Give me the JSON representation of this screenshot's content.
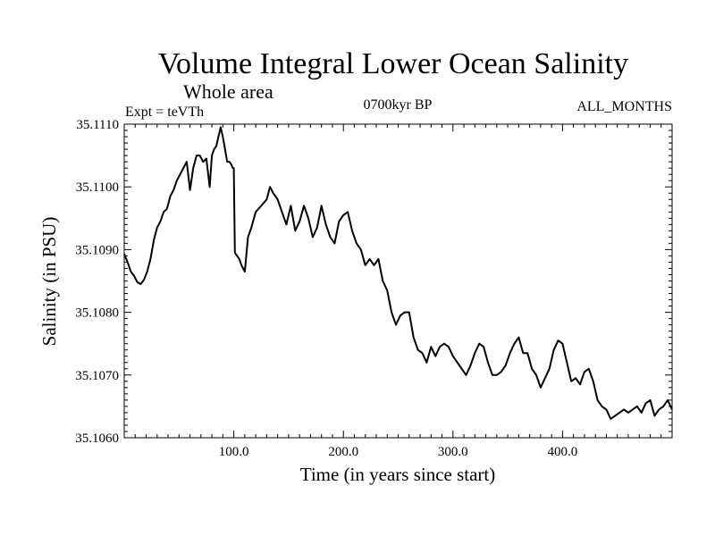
{
  "chart_data": {
    "type": "line",
    "title": "Volume Integral Lower Ocean Salinity",
    "subtitle": "Whole area",
    "experiment": "Expt = teVTh",
    "period": "0700kyr BP",
    "months": "ALL_MONTHS",
    "xlabel": "Time (in years since start)",
    "ylabel": "Salinity (in PSU)",
    "xlim": [
      0,
      500
    ],
    "ylim": [
      35.106,
      35.111
    ],
    "x_ticks": [
      100,
      200,
      300,
      400
    ],
    "x_tick_labels": [
      "100.0",
      "200.0",
      "300.0",
      "400.0"
    ],
    "y_ticks": [
      35.106,
      35.107,
      35.108,
      35.109,
      35.11,
      35.111
    ],
    "y_tick_labels": [
      "35.1060",
      "35.1070",
      "35.1080",
      "35.1090",
      "35.1100",
      "35.1110"
    ],
    "grid": false,
    "series": [
      {
        "x": [
          0,
          3,
          6,
          9,
          12,
          15,
          18,
          21,
          24,
          27,
          30,
          33,
          36,
          39,
          42,
          45,
          48,
          51,
          54,
          57,
          60,
          63,
          66,
          69,
          72,
          75,
          78,
          80,
          82,
          84,
          86,
          88,
          90,
          92,
          94,
          96,
          98,
          99,
          100,
          101,
          103,
          105,
          107,
          110,
          113,
          116,
          120,
          125,
          130,
          133,
          136,
          140,
          144,
          148,
          152,
          156,
          160,
          164,
          168,
          172,
          176,
          180,
          184,
          188,
          192,
          196,
          200,
          204,
          208,
          212,
          216,
          220,
          224,
          228,
          232,
          236,
          240,
          244,
          248,
          252,
          256,
          260,
          264,
          268,
          272,
          276,
          280,
          284,
          288,
          292,
          296,
          300,
          304,
          308,
          312,
          316,
          320,
          324,
          328,
          332,
          336,
          340,
          344,
          348,
          352,
          356,
          360,
          364,
          368,
          372,
          376,
          380,
          384,
          388,
          392,
          396,
          400,
          404,
          408,
          412,
          416,
          420,
          424,
          428,
          432,
          436,
          440,
          444,
          448,
          452,
          456,
          460,
          464,
          468,
          472,
          476,
          480,
          484,
          488,
          492,
          496,
          500
        ],
        "y": [
          35.10893,
          35.1088,
          35.10865,
          35.10858,
          35.10848,
          35.10845,
          35.10852,
          35.10865,
          35.10885,
          35.10915,
          35.10935,
          35.10945,
          35.1096,
          35.10965,
          35.10985,
          35.10995,
          35.1101,
          35.1102,
          35.1103,
          35.1104,
          35.10995,
          35.1103,
          35.1105,
          35.1105,
          35.1104,
          35.11045,
          35.11,
          35.1105,
          35.1106,
          35.11065,
          35.1108,
          35.11095,
          35.1108,
          35.1106,
          35.1104,
          35.1104,
          35.11035,
          35.1103,
          35.1103,
          35.10895,
          35.1089,
          35.10885,
          35.10875,
          35.10865,
          35.1092,
          35.10935,
          35.1096,
          35.1097,
          35.1098,
          35.11,
          35.1099,
          35.1098,
          35.1096,
          35.1094,
          35.1097,
          35.1093,
          35.10945,
          35.1097,
          35.1095,
          35.1092,
          35.10935,
          35.1097,
          35.1094,
          35.1092,
          35.1091,
          35.10945,
          35.10955,
          35.1096,
          35.1093,
          35.1091,
          35.109,
          35.10875,
          35.10885,
          35.10875,
          35.10885,
          35.1085,
          35.10835,
          35.108,
          35.1078,
          35.10795,
          35.108,
          35.108,
          35.1076,
          35.1074,
          35.10735,
          35.1072,
          35.10745,
          35.1073,
          35.10745,
          35.1075,
          35.10745,
          35.1073,
          35.1072,
          35.1071,
          35.107,
          35.10715,
          35.10735,
          35.1075,
          35.10745,
          35.1072,
          35.107,
          35.107,
          35.10705,
          35.10715,
          35.10735,
          35.1075,
          35.1076,
          35.10735,
          35.10735,
          35.1071,
          35.107,
          35.1068,
          35.10695,
          35.1071,
          35.1074,
          35.10755,
          35.1075,
          35.1072,
          35.1069,
          35.10695,
          35.10685,
          35.10705,
          35.1071,
          35.1069,
          35.1066,
          35.1065,
          35.10645,
          35.1063,
          35.10635,
          35.1064,
          35.10645,
          35.1064,
          35.10645,
          35.1065,
          35.1064,
          35.10655,
          35.1066,
          35.10635,
          35.10645,
          35.1065,
          35.1066,
          35.10645
        ]
      }
    ]
  }
}
